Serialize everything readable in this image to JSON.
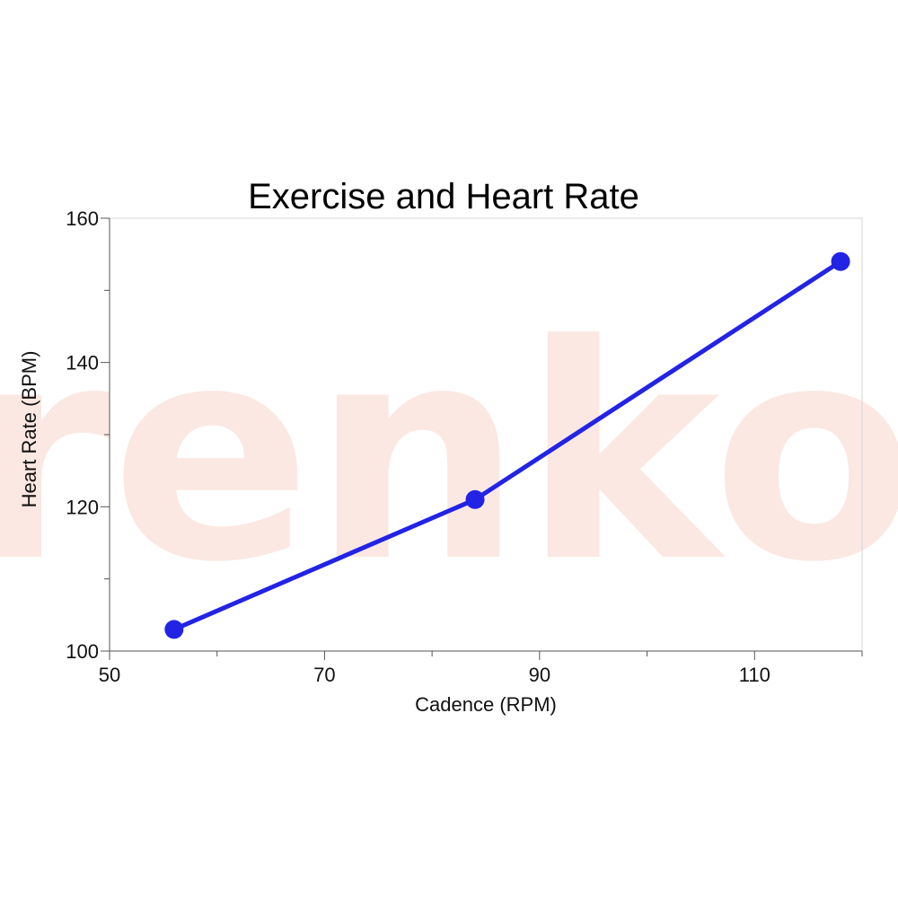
{
  "watermark": "renko",
  "chart_data": {
    "type": "line",
    "title": "Exercise and Heart Rate",
    "xlabel": "Cadence (RPM)",
    "ylabel": "Heart Rate (BPM)",
    "xlim": [
      50,
      120
    ],
    "ylim": [
      100,
      160
    ],
    "xticks": [
      50,
      70,
      90,
      110
    ],
    "yticks": [
      100,
      120,
      140,
      160
    ],
    "x_minor_step": 10,
    "y_minor_step": 10,
    "grid": false,
    "series": [
      {
        "x": [
          56,
          84,
          118
        ],
        "y": [
          103,
          121,
          154
        ],
        "color": "#2323e6"
      }
    ]
  }
}
